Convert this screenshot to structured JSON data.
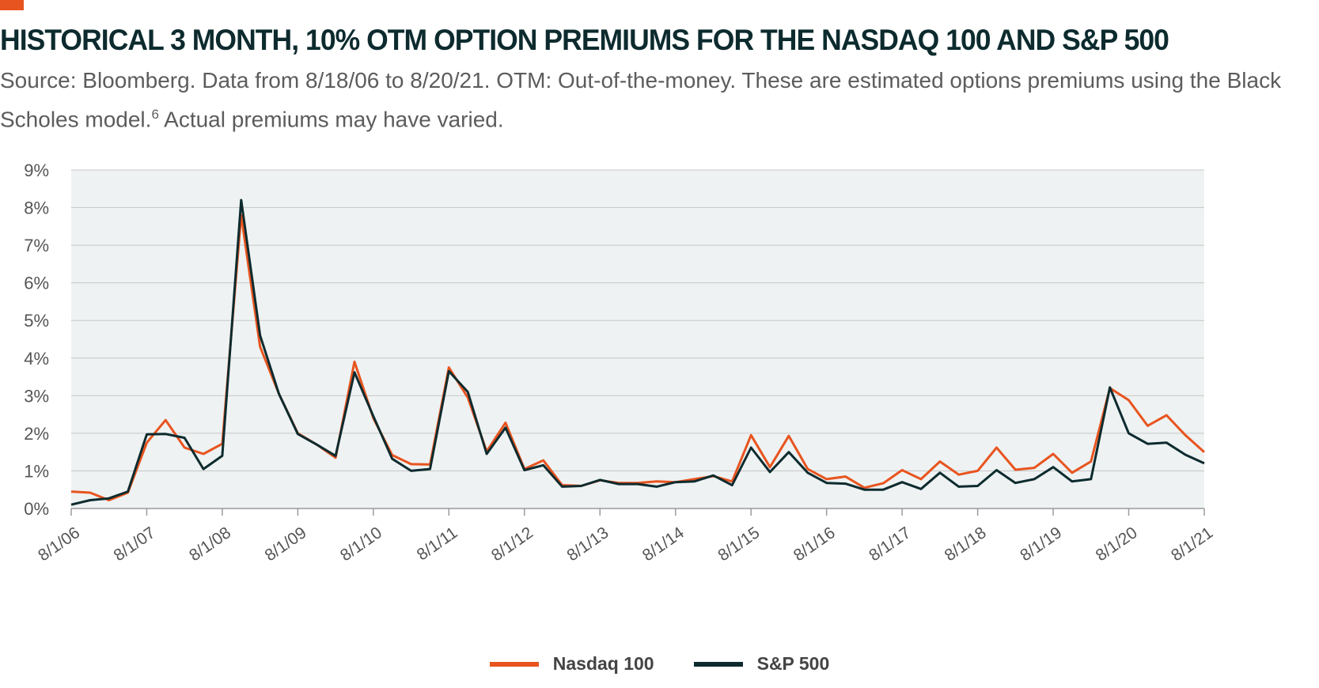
{
  "header": {
    "title": "HISTORICAL 3 MONTH, 10% OTM OPTION PREMIUMS FOR THE NASDAQ 100 AND S&P 500",
    "subtitle": "Source: Bloomberg. Data from 8/18/06 to 8/20/21. OTM: Out-of-the-money. These are estimated options premiums using the Black Scholes model.",
    "subtitle_footnote": "6",
    "subtitle_tail": " Actual premiums may have varied."
  },
  "colors": {
    "accent": "#e8541f",
    "nasdaq": "#e8541f",
    "sp500": "#0d2b2e",
    "plot_bg": "#eef2f2",
    "grid": "#c8c8c8"
  },
  "chart_data": {
    "type": "line",
    "title": "HISTORICAL 3 MONTH, 10% OTM OPTION PREMIUMS FOR THE NASDAQ 100 AND S&P 500",
    "xlabel": "",
    "ylabel": "",
    "ylim": [
      0,
      9
    ],
    "y_ticks": [
      "0%",
      "1%",
      "2%",
      "3%",
      "4%",
      "5%",
      "6%",
      "7%",
      "8%",
      "9%"
    ],
    "x_ticks": [
      "8/1/06",
      "8/1/07",
      "8/1/08",
      "8/1/09",
      "8/1/10",
      "8/1/11",
      "8/1/12",
      "8/1/13",
      "8/1/14",
      "8/1/15",
      "8/1/16",
      "8/1/17",
      "8/1/18",
      "8/1/19",
      "8/1/20",
      "8/1/21"
    ],
    "grid": "horizontal",
    "legend_position": "bottom-center",
    "x": [
      "8/1/06",
      "11/1/06",
      "2/1/07",
      "5/1/07",
      "8/1/07",
      "11/1/07",
      "2/1/08",
      "5/1/08",
      "8/1/08",
      "11/1/08",
      "2/1/09",
      "5/1/09",
      "8/1/09",
      "11/1/09",
      "2/1/10",
      "5/1/10",
      "8/1/10",
      "11/1/10",
      "2/1/11",
      "5/1/11",
      "8/1/11",
      "11/1/11",
      "2/1/12",
      "5/1/12",
      "8/1/12",
      "11/1/12",
      "2/1/13",
      "5/1/13",
      "8/1/13",
      "11/1/13",
      "2/1/14",
      "5/1/14",
      "8/1/14",
      "11/1/14",
      "2/1/15",
      "5/1/15",
      "8/1/15",
      "11/1/15",
      "2/1/16",
      "5/1/16",
      "8/1/16",
      "11/1/16",
      "2/1/17",
      "5/1/17",
      "8/1/17",
      "11/1/17",
      "2/1/18",
      "5/1/18",
      "8/1/18",
      "11/1/18",
      "2/1/19",
      "5/1/19",
      "8/1/19",
      "11/1/19",
      "2/1/20",
      "5/1/20",
      "8/1/20",
      "11/1/20",
      "2/1/21",
      "5/1/21",
      "8/1/21"
    ],
    "series": [
      {
        "name": "Nasdaq 100",
        "values": [
          0.45,
          0.42,
          0.22,
          0.42,
          1.75,
          2.35,
          1.62,
          1.45,
          1.72,
          7.8,
          4.3,
          3.05,
          2.0,
          1.7,
          1.35,
          3.9,
          2.4,
          1.42,
          1.18,
          1.17,
          3.75,
          2.95,
          1.52,
          2.28,
          1.05,
          1.28,
          0.62,
          0.6,
          0.75,
          0.68,
          0.68,
          0.72,
          0.7,
          0.78,
          0.86,
          0.72,
          1.95,
          1.1,
          1.93,
          1.05,
          0.78,
          0.85,
          0.55,
          0.67,
          1.02,
          0.78,
          1.25,
          0.9,
          1.0,
          1.62,
          1.03,
          1.08,
          1.45,
          0.95,
          1.25,
          3.2,
          2.88,
          2.2,
          2.48,
          1.95,
          1.5
        ]
      },
      {
        "name": "S&P 500",
        "values": [
          0.1,
          0.22,
          0.27,
          0.45,
          1.97,
          1.98,
          1.88,
          1.05,
          1.4,
          8.2,
          4.6,
          3.05,
          1.98,
          1.7,
          1.4,
          3.62,
          2.45,
          1.32,
          1.0,
          1.05,
          3.65,
          3.1,
          1.45,
          2.15,
          1.02,
          1.15,
          0.58,
          0.6,
          0.76,
          0.65,
          0.65,
          0.58,
          0.7,
          0.72,
          0.88,
          0.62,
          1.62,
          0.97,
          1.5,
          0.95,
          0.68,
          0.66,
          0.5,
          0.5,
          0.7,
          0.52,
          0.95,
          0.58,
          0.6,
          1.02,
          0.68,
          0.78,
          1.1,
          0.72,
          0.78,
          3.22,
          2.0,
          1.72,
          1.75,
          1.43,
          1.2
        ]
      }
    ]
  }
}
